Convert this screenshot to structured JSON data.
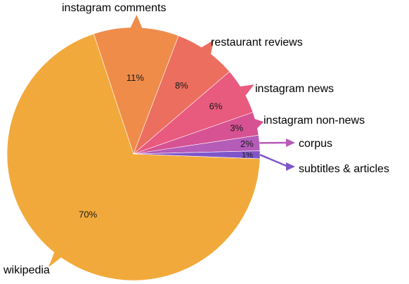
{
  "chart_data": {
    "type": "pie",
    "title": "",
    "slices": [
      {
        "label": "wikipedia",
        "value": 70,
        "value_label": "70%",
        "color": "#F2A93B"
      },
      {
        "label": "instagram comments",
        "value": 11,
        "value_label": "11%",
        "color": "#EF8C4A"
      },
      {
        "label": "restaurant reviews",
        "value": 8,
        "value_label": "8%",
        "color": "#EC6E5E"
      },
      {
        "label": "instagram news",
        "value": 6,
        "value_label": "6%",
        "color": "#E85A7E"
      },
      {
        "label": "instagram non-news",
        "value": 3,
        "value_label": "3%",
        "color": "#D65292"
      },
      {
        "label": "corpus",
        "value": 2,
        "value_label": "2%",
        "color": "#B55BB8"
      },
      {
        "label": "subtitles & articles",
        "value": 1,
        "value_label": "1%",
        "color": "#7F56C9"
      }
    ]
  }
}
